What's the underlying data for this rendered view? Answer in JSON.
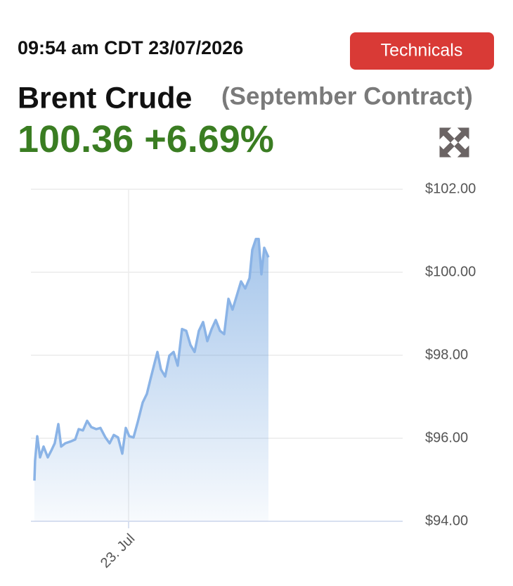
{
  "header": {
    "timestamp": "09:54 am CDT 23/07/2026",
    "button": "Technicals",
    "title": "Brent Crude",
    "subtitle": "(September Contract)",
    "price": "100.36",
    "change": "+6.69%"
  },
  "chart_data": {
    "type": "area",
    "color": "#8ab3e6",
    "grid": true,
    "x": [
      -10,
      -9.93,
      -9.7,
      -9.4,
      -9.03,
      -8.58,
      -8.21,
      -7.84,
      -7.46,
      -7.16,
      -6.72,
      -6.19,
      -5.67,
      -5.3,
      -4.85,
      -4.4,
      -3.96,
      -3.43,
      -2.99,
      -2.46,
      -2.01,
      -1.57,
      -1.12,
      -0.67,
      -0.3,
      0.07,
      0.52,
      0.97,
      1.49,
      1.94,
      2.31,
      2.69,
      3.06,
      3.43,
      3.88,
      4.33,
      4.78,
      5.22,
      5.67,
      6.12,
      6.57,
      7.01,
      7.46,
      7.91,
      8.36,
      8.81,
      9.25,
      9.7,
      10.15,
      10.6,
      11.04,
      11.49,
      11.94,
      12.39,
      12.84,
      13.13,
      13.51,
      13.81,
      14.1,
      14.4,
      14.85
    ],
    "values": [
      94.98,
      95.46,
      96.05,
      95.54,
      95.8,
      95.54,
      95.7,
      95.88,
      96.34,
      95.8,
      95.88,
      95.92,
      95.97,
      96.22,
      96.19,
      96.42,
      96.27,
      96.22,
      96.25,
      96.02,
      95.88,
      96.08,
      96.02,
      95.63,
      96.25,
      96.05,
      96.02,
      96.39,
      96.86,
      97.07,
      97.41,
      97.75,
      98.08,
      97.66,
      97.49,
      97.99,
      98.08,
      97.75,
      98.63,
      98.59,
      98.25,
      98.08,
      98.59,
      98.8,
      98.34,
      98.63,
      98.85,
      98.59,
      98.51,
      99.36,
      99.1,
      99.44,
      99.78,
      99.61,
      99.86,
      100.54,
      100.8,
      100.8,
      99.95,
      100.59,
      100.36
    ],
    "xlim": [
      -10.37,
      29.1
    ],
    "xticks": [
      {
        "value": 0,
        "label": "23. Jul"
      }
    ],
    "ylim": [
      94,
      102
    ],
    "yticks": [
      {
        "value": 94,
        "label": "$94.00"
      },
      {
        "value": 96,
        "label": "$96.00"
      },
      {
        "value": 98,
        "label": "$98.00"
      },
      {
        "value": 100,
        "label": "$100.00"
      },
      {
        "value": 102,
        "label": "$102.00"
      }
    ]
  }
}
